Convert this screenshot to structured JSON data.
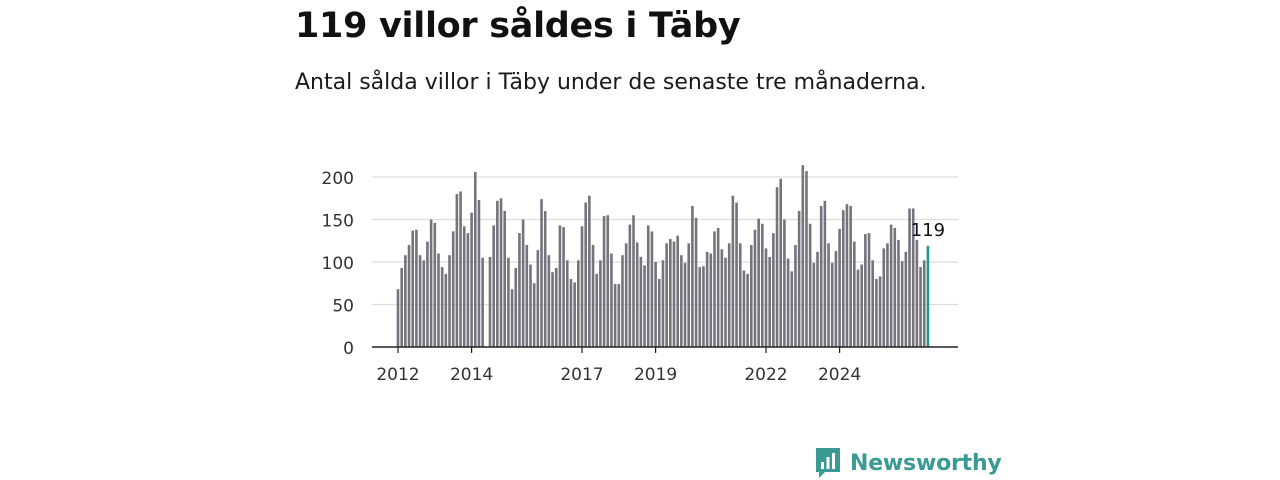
{
  "header": {
    "title": "119 villor såldes i Täby",
    "subtitle": "Antal sålda villor i Täby under de senaste tre månaderna."
  },
  "brand": {
    "name": "Newsworthy",
    "color": "#3a9a94"
  },
  "colors": {
    "bar": "#75737b",
    "highlight": "#1f9a8f",
    "grid": "#dddddd",
    "axis": "#222222"
  },
  "chart_data": {
    "type": "bar",
    "title": "119 villor såldes i Täby",
    "subtitle": "Antal sålda villor i Täby under de senaste tre månaderna.",
    "xlabel": "",
    "ylabel": "",
    "ylim": [
      0,
      220
    ],
    "yticks": [
      0,
      50,
      100,
      150,
      200
    ],
    "grid": true,
    "legend": "none",
    "x_tick_labels": [
      "2012",
      "2014",
      "2017",
      "2019",
      "2022",
      "2024"
    ],
    "x_tick_index": [
      0,
      20,
      50,
      70,
      100,
      120
    ],
    "highlight_label": "119",
    "values": [
      68,
      93,
      108,
      120,
      137,
      138,
      108,
      102,
      124,
      150,
      146,
      110,
      94,
      86,
      108,
      136,
      180,
      183,
      142,
      134,
      158,
      206,
      173,
      105,
      0,
      106,
      143,
      172,
      175,
      160,
      105,
      68,
      93,
      134,
      150,
      120,
      97,
      75,
      114,
      174,
      160,
      108,
      88,
      93,
      143,
      141,
      102,
      80,
      76,
      102,
      142,
      170,
      178,
      120,
      86,
      102,
      154,
      155,
      110,
      74,
      74,
      108,
      122,
      144,
      155,
      123,
      106,
      96,
      143,
      136,
      100,
      80,
      102,
      122,
      127,
      124,
      131,
      108,
      99,
      122,
      166,
      152,
      94,
      95,
      112,
      110,
      136,
      140,
      115,
      105,
      122,
      178,
      170,
      122,
      90,
      86,
      120,
      138,
      151,
      145,
      116,
      106,
      134,
      188,
      198,
      150,
      104,
      89,
      120,
      160,
      214,
      207,
      145,
      99,
      112,
      166,
      172,
      122,
      99,
      113,
      139,
      161,
      168,
      166,
      124,
      91,
      97,
      133,
      134,
      102,
      80,
      83,
      116,
      122,
      144,
      140,
      126,
      101,
      112,
      163,
      163,
      126,
      94,
      102,
      119
    ]
  }
}
